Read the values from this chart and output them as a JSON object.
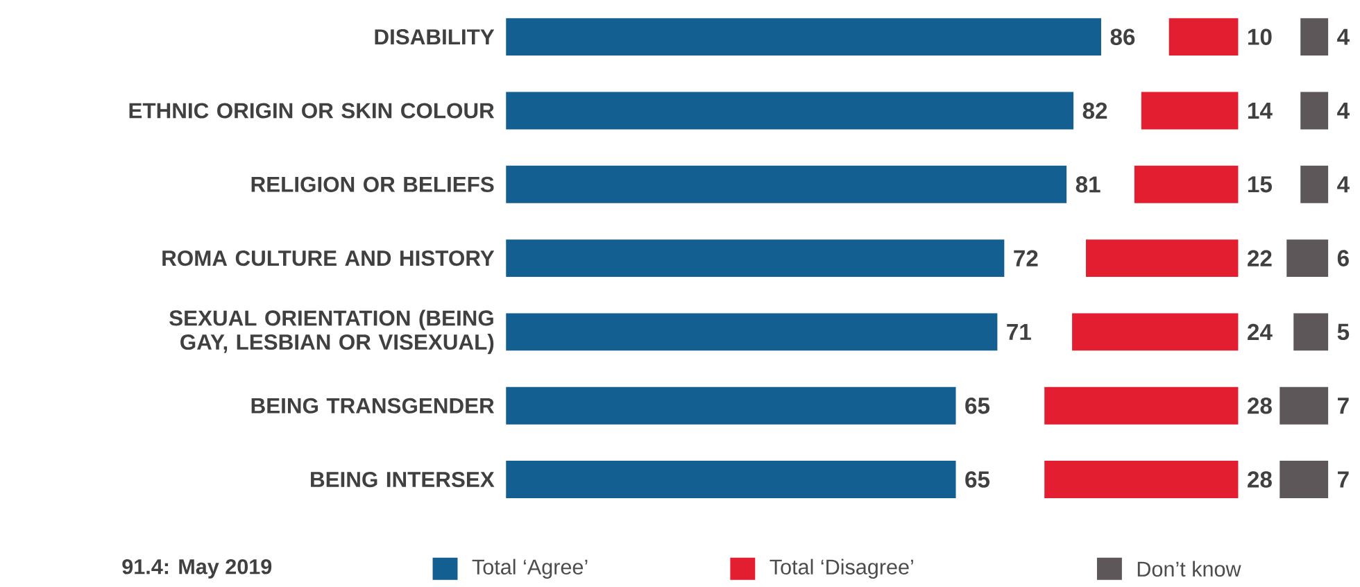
{
  "chart_data": [
    {
      "type": "bar",
      "orientation": "horizontal",
      "categories": [
        "DISABILITY",
        "ETHNIC ORIGIN OR SKIN COLOUR",
        "RELIGION OR BELIEFS",
        "ROMA CULTURE AND HISTORY",
        "SEXUAL ORIENTATION (BEING GAY, LESBIAN OR VISEXUAL)",
        "BEING TRANSGENDER",
        "BEING INTERSEX"
      ],
      "series": [
        {
          "name": "Total ‘Agree’",
          "color": "#135f91",
          "values": [
            86,
            82,
            81,
            72,
            71,
            65,
            65
          ]
        }
      ],
      "data_labels": true,
      "legend": "bottom",
      "tick_labels": "y",
      "annotations": [
        "91.4: May 2019"
      ]
    },
    {
      "type": "bar",
      "orientation": "horizontal",
      "categories": [
        null,
        null,
        null,
        null,
        null,
        null,
        null
      ],
      "series": [
        {
          "name": "Total ‘Disagree’",
          "color": "#e31e30",
          "values": [
            10,
            14,
            15,
            22,
            24,
            28,
            28
          ]
        }
      ],
      "data_labels": true,
      "legend": "bottom",
      "tick_labels": false
    },
    {
      "type": "bar",
      "orientation": "horizontal",
      "categories": [
        null,
        null,
        null,
        null,
        null,
        null,
        null
      ],
      "series": [
        {
          "name": "Don’t know",
          "color": "#5e5759",
          "values": [
            4,
            4,
            4,
            6,
            5,
            7,
            7
          ]
        }
      ],
      "data_labels": true,
      "legend": "bottom",
      "tick_labels": false
    }
  ]
}
